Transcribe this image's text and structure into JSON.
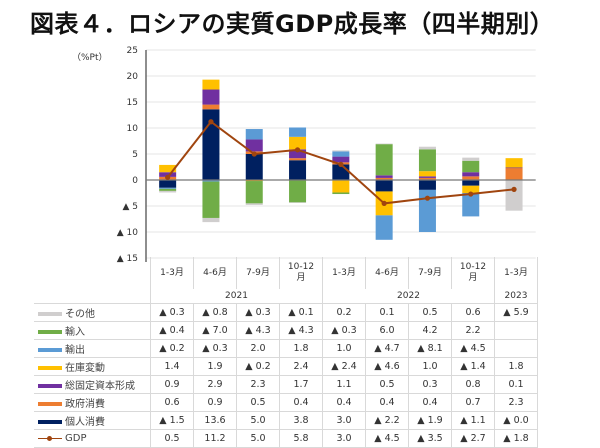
{
  "title": "図表４．ロシアの実質GDP成長率（四半期別）",
  "chart_data": {
    "type": "bar",
    "stacked": true,
    "title": "図表４．ロシアの実質GDP成長率（四半期別）",
    "ylabel": "（%Pt）",
    "ylim": [
      -15,
      25
    ],
    "yticks": [
      {
        "v": 25,
        "label": "25"
      },
      {
        "v": 20,
        "label": "20"
      },
      {
        "v": 15,
        "label": "15"
      },
      {
        "v": 10,
        "label": "10"
      },
      {
        "v": 5,
        "label": "5"
      },
      {
        "v": 0,
        "label": "0"
      },
      {
        "v": -5,
        "label": "▲ 5"
      },
      {
        "v": -10,
        "label": "▲ 10"
      },
      {
        "v": -15,
        "label": "▲ 15"
      }
    ],
    "grid": true,
    "categories": [
      "1-3月",
      "4-6月",
      "7-9月",
      "10-12月",
      "1-3月",
      "4-6月",
      "7-9月",
      "10-12月",
      "1-3月"
    ],
    "category_lines": [
      [
        "1-3月"
      ],
      [
        "4-6月"
      ],
      [
        "7-9月"
      ],
      [
        "10-12",
        "月"
      ],
      [
        "1-3月"
      ],
      [
        "4-6月"
      ],
      [
        "7-9月"
      ],
      [
        "10-12",
        "月"
      ],
      [
        "1-3月"
      ]
    ],
    "years": [
      {
        "label": "2021",
        "span": 4
      },
      {
        "label": "2022",
        "span": 4
      },
      {
        "label": "2023",
        "span": 1
      }
    ],
    "series": [
      {
        "name": "その他",
        "color": "#d0cece",
        "values": [
          -0.3,
          -0.8,
          -0.3,
          -0.1,
          0.2,
          0.1,
          0.5,
          0.6,
          -5.9
        ],
        "labels": [
          "▲ 0.3",
          "▲ 0.8",
          "▲ 0.3",
          "▲ 0.1",
          "0.2",
          "0.1",
          "0.5",
          "0.6",
          "▲ 5.9"
        ]
      },
      {
        "name": "輸入",
        "color": "#70ad47",
        "values": [
          -0.4,
          -7.0,
          -4.3,
          -4.3,
          -0.3,
          6.0,
          4.2,
          2.2,
          null
        ],
        "labels": [
          "▲ 0.4",
          "▲ 7.0",
          "▲ 4.3",
          "▲ 4.3",
          "▲ 0.3",
          "6.0",
          "4.2",
          "2.2",
          ""
        ]
      },
      {
        "name": "輸出",
        "color": "#5b9bd5",
        "values": [
          -0.2,
          -0.3,
          2.0,
          1.8,
          1.0,
          -4.7,
          -8.1,
          -4.5,
          null
        ],
        "labels": [
          "▲ 0.2",
          "▲ 0.3",
          "2.0",
          "1.8",
          "1.0",
          "▲ 4.7",
          "▲ 8.1",
          "▲ 4.5",
          ""
        ]
      },
      {
        "name": "在庫変動",
        "color": "#ffc000",
        "values": [
          1.4,
          1.9,
          -0.2,
          2.4,
          -2.4,
          -4.6,
          1.0,
          -1.4,
          1.8
        ],
        "labels": [
          "1.4",
          "1.9",
          "▲ 0.2",
          "2.4",
          "▲ 2.4",
          "▲ 4.6",
          "1.0",
          "▲ 1.4",
          "1.8"
        ]
      },
      {
        "name": "総固定資本形成",
        "color": "#7030a0",
        "values": [
          0.9,
          2.9,
          2.3,
          1.7,
          1.1,
          0.5,
          0.3,
          0.8,
          0.1
        ],
        "labels": [
          "0.9",
          "2.9",
          "2.3",
          "1.7",
          "1.1",
          "0.5",
          "0.3",
          "0.8",
          "0.1"
        ]
      },
      {
        "name": "政府消費",
        "color": "#ed7d31",
        "values": [
          0.6,
          0.9,
          0.5,
          0.4,
          0.4,
          0.4,
          0.4,
          0.7,
          2.3
        ],
        "labels": [
          "0.6",
          "0.9",
          "0.5",
          "0.4",
          "0.4",
          "0.4",
          "0.4",
          "0.7",
          "2.3"
        ]
      },
      {
        "name": "個人消費",
        "color": "#002060",
        "values": [
          -1.5,
          13.6,
          5.0,
          3.8,
          3.0,
          -2.2,
          -1.9,
          -1.1,
          0.0
        ],
        "labels": [
          "▲ 1.5",
          "13.6",
          "5.0",
          "3.8",
          "3.0",
          "▲ 2.2",
          "▲ 1.9",
          "▲ 1.1",
          "▲ 0.0"
        ]
      }
    ],
    "line": {
      "name": "GDP",
      "color": "#a0450f",
      "values": [
        0.5,
        11.2,
        5.0,
        5.8,
        3.0,
        -4.5,
        -3.5,
        -2.7,
        -1.8
      ],
      "labels": [
        "0.5",
        "11.2",
        "5.0",
        "5.8",
        "3.0",
        "▲ 4.5",
        "▲ 3.5",
        "▲ 2.7",
        "▲ 1.8"
      ]
    },
    "stack_order": [
      "個人消費",
      "政府消費",
      "総固定資本形成",
      "在庫変動",
      "輸出",
      "輸入",
      "その他"
    ],
    "legend": "table-left"
  }
}
